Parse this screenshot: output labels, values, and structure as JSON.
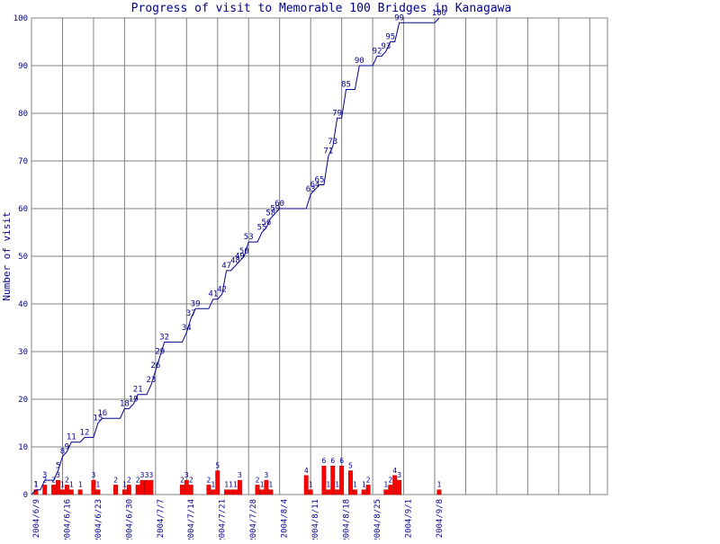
{
  "chart_data": {
    "type": "line",
    "title": "Progress of visit to Memorable 100 Bridges in Kanagawa",
    "xlabel": "",
    "ylabel": "Number of visit",
    "ylim": [
      0,
      100
    ],
    "yticks": [
      0,
      10,
      20,
      30,
      40,
      50,
      60,
      70,
      80,
      90,
      100
    ],
    "xlim": [
      "2004-06-08",
      "2004-10-16"
    ],
    "grid": true,
    "x_tick_labels": [
      "2004/6/9",
      "2004/6/16",
      "2004/6/23",
      "2004/6/30",
      "2004/7/7",
      "2004/7/14",
      "2004/7/21",
      "2004/7/28",
      "2004/8/4",
      "2004/8/11",
      "2004/8/18",
      "2004/8/25",
      "2004/9/1",
      "2004/9/8"
    ],
    "colors": {
      "cumulative": "#00008b",
      "daily": "#ff0000",
      "daily_outline": "#b30000",
      "grid": "#808080",
      "text": "#00008b"
    },
    "series": [
      {
        "kind": "step-line",
        "points": [
          [
            "2004-06-08",
            0
          ],
          [
            "2004-06-09",
            1
          ],
          [
            "2004-06-10",
            1
          ],
          [
            "2004-06-11",
            3
          ],
          [
            "2004-06-13",
            3
          ],
          [
            "2004-06-14",
            5
          ],
          [
            "2004-06-15",
            8
          ],
          [
            "2004-06-16",
            9
          ],
          [
            "2004-06-17",
            11
          ],
          [
            "2004-06-20",
            12
          ],
          [
            "2004-06-23",
            15
          ],
          [
            "2004-06-24",
            16
          ],
          [
            "2004-06-29",
            18
          ],
          [
            "2004-07-01",
            19
          ],
          [
            "2004-07-02",
            21
          ],
          [
            "2004-07-05",
            23
          ],
          [
            "2004-07-06",
            26
          ],
          [
            "2004-07-07",
            29
          ],
          [
            "2004-07-08",
            32
          ],
          [
            "2004-07-13",
            34
          ],
          [
            "2004-07-14",
            37
          ],
          [
            "2004-07-15",
            39
          ],
          [
            "2004-07-19",
            41
          ],
          [
            "2004-07-21",
            42
          ],
          [
            "2004-07-22",
            47
          ],
          [
            "2004-07-24",
            48
          ],
          [
            "2004-07-25",
            49
          ],
          [
            "2004-07-26",
            50
          ],
          [
            "2004-07-27",
            53
          ],
          [
            "2004-07-30",
            55
          ],
          [
            "2004-07-31",
            56
          ],
          [
            "2004-08-01",
            58
          ],
          [
            "2004-08-02",
            59
          ],
          [
            "2004-08-03",
            60
          ],
          [
            "2004-08-10",
            63
          ],
          [
            "2004-08-11",
            64
          ],
          [
            "2004-08-12",
            65
          ],
          [
            "2004-08-14",
            71
          ],
          [
            "2004-08-15",
            73
          ],
          [
            "2004-08-16",
            79
          ],
          [
            "2004-08-17",
            79
          ],
          [
            "2004-08-18",
            85
          ],
          [
            "2004-08-20",
            85
          ],
          [
            "2004-08-21",
            90
          ],
          [
            "2004-08-24",
            90
          ],
          [
            "2004-08-25",
            92
          ],
          [
            "2004-08-27",
            93
          ],
          [
            "2004-08-28",
            95
          ],
          [
            "2004-08-30",
            99
          ],
          [
            "2004-09-08",
            100
          ]
        ]
      },
      {
        "kind": "daily-bars",
        "points": [
          [
            "2004-06-09",
            1
          ],
          [
            "2004-06-11",
            2
          ],
          [
            "2004-06-13",
            2
          ],
          [
            "2004-06-14",
            3
          ],
          [
            "2004-06-15",
            1
          ],
          [
            "2004-06-16",
            2
          ],
          [
            "2004-06-17",
            1
          ],
          [
            "2004-06-19",
            1
          ],
          [
            "2004-06-22",
            3
          ],
          [
            "2004-06-23",
            1
          ],
          [
            "2004-06-27",
            2
          ],
          [
            "2004-06-29",
            1
          ],
          [
            "2004-06-30",
            2
          ],
          [
            "2004-07-02",
            2
          ],
          [
            "2004-07-03",
            3
          ],
          [
            "2004-07-04",
            3
          ],
          [
            "2004-07-05",
            3
          ],
          [
            "2004-07-12",
            2
          ],
          [
            "2004-07-13",
            3
          ],
          [
            "2004-07-14",
            2
          ],
          [
            "2004-07-18",
            2
          ],
          [
            "2004-07-19",
            1
          ],
          [
            "2004-07-20",
            5
          ],
          [
            "2004-07-22",
            1
          ],
          [
            "2004-07-23",
            1
          ],
          [
            "2004-07-24",
            1
          ],
          [
            "2004-07-25",
            3
          ],
          [
            "2004-07-29",
            2
          ],
          [
            "2004-07-30",
            1
          ],
          [
            "2004-07-31",
            3
          ],
          [
            "2004-08-01",
            1
          ],
          [
            "2004-08-09",
            4
          ],
          [
            "2004-08-10",
            1
          ],
          [
            "2004-08-13",
            6
          ],
          [
            "2004-08-14",
            1
          ],
          [
            "2004-08-15",
            6
          ],
          [
            "2004-08-16",
            1
          ],
          [
            "2004-08-17",
            6
          ],
          [
            "2004-08-19",
            5
          ],
          [
            "2004-08-20",
            1
          ],
          [
            "2004-08-22",
            1
          ],
          [
            "2004-08-23",
            2
          ],
          [
            "2004-08-27",
            1
          ],
          [
            "2004-08-28",
            2
          ],
          [
            "2004-08-29",
            4
          ],
          [
            "2004-08-30",
            3
          ],
          [
            "2004-09-08",
            1
          ]
        ]
      }
    ],
    "cumulative_labels": [
      [
        "2004-06-09",
        1
      ],
      [
        "2004-06-11",
        3
      ],
      [
        "2004-06-14",
        5
      ],
      [
        "2004-06-15",
        8
      ],
      [
        "2004-06-16",
        9
      ],
      [
        "2004-06-17",
        11
      ],
      [
        "2004-06-20",
        12
      ],
      [
        "2004-06-23",
        15
      ],
      [
        "2004-06-24",
        16
      ],
      [
        "2004-06-29",
        18
      ],
      [
        "2004-07-01",
        19
      ],
      [
        "2004-07-02",
        21
      ],
      [
        "2004-07-05",
        23
      ],
      [
        "2004-07-06",
        26
      ],
      [
        "2004-07-07",
        29
      ],
      [
        "2004-07-08",
        32
      ],
      [
        "2004-07-13",
        34
      ],
      [
        "2004-07-14",
        37
      ],
      [
        "2004-07-15",
        39
      ],
      [
        "2004-07-19",
        41
      ],
      [
        "2004-07-21",
        42
      ],
      [
        "2004-07-22",
        47
      ],
      [
        "2004-07-24",
        48
      ],
      [
        "2004-07-25",
        49
      ],
      [
        "2004-07-26",
        50
      ],
      [
        "2004-07-27",
        53
      ],
      [
        "2004-07-30",
        55
      ],
      [
        "2004-07-31",
        56
      ],
      [
        "2004-08-01",
        58
      ],
      [
        "2004-08-02",
        59
      ],
      [
        "2004-08-03",
        60
      ],
      [
        "2004-08-10",
        63
      ],
      [
        "2004-08-11",
        64
      ],
      [
        "2004-08-12",
        65
      ],
      [
        "2004-08-14",
        71
      ],
      [
        "2004-08-15",
        73
      ],
      [
        "2004-08-16",
        79
      ],
      [
        "2004-08-18",
        85
      ],
      [
        "2004-08-21",
        90
      ],
      [
        "2004-08-25",
        92
      ],
      [
        "2004-08-27",
        93
      ],
      [
        "2004-08-28",
        95
      ],
      [
        "2004-08-30",
        99
      ],
      [
        "2004-09-08",
        100
      ]
    ]
  }
}
